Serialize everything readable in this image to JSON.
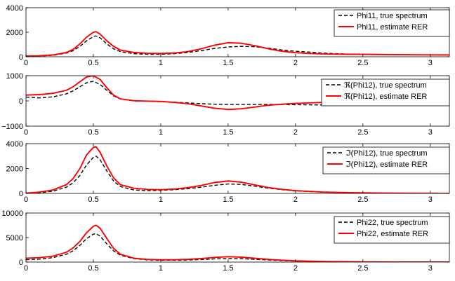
{
  "chart_data": [
    {
      "type": "line",
      "xlim": [
        0,
        3.1416
      ],
      "ylim": [
        0,
        4000
      ],
      "x_ticks": [
        0,
        0.5,
        1,
        1.5,
        2,
        2.5,
        3
      ],
      "y_ticks": [
        0,
        2000,
        4000
      ],
      "y_tick_labels": [
        "0",
        "2000",
        "4000"
      ],
      "legend_position": "top-right",
      "series": [
        {
          "name": "Phi11, true spectrum",
          "color": "#000000",
          "style": "dashed",
          "x": [
            0,
            0.1,
            0.2,
            0.3,
            0.35,
            0.4,
            0.45,
            0.5,
            0.52,
            0.55,
            0.6,
            0.65,
            0.7,
            0.8,
            0.9,
            1.0,
            1.1,
            1.2,
            1.3,
            1.4,
            1.5,
            1.6,
            1.7,
            1.8,
            1.9,
            2.0,
            2.1,
            2.2,
            2.3,
            2.4,
            2.5,
            2.6,
            2.7,
            2.8,
            2.9,
            3.0,
            3.1416
          ],
          "y": [
            40,
            60,
            120,
            300,
            500,
            850,
            1300,
            1650,
            1700,
            1550,
            1050,
            650,
            420,
            250,
            200,
            200,
            250,
            350,
            500,
            680,
            800,
            850,
            820,
            700,
            550,
            450,
            380,
            300,
            250,
            220,
            200,
            190,
            180,
            170,
            160,
            150,
            140
          ]
        },
        {
          "name": "Phi11, estimate RER",
          "color": "#ff0000",
          "style": "solid",
          "x": [
            0,
            0.1,
            0.2,
            0.3,
            0.35,
            0.4,
            0.45,
            0.5,
            0.52,
            0.55,
            0.6,
            0.65,
            0.7,
            0.8,
            0.9,
            1.0,
            1.1,
            1.2,
            1.3,
            1.4,
            1.5,
            1.6,
            1.7,
            1.8,
            1.9,
            2.0,
            2.1,
            2.2,
            2.3,
            2.4,
            2.5,
            2.6,
            2.7,
            2.8,
            2.9,
            3.0,
            3.1416
          ],
          "y": [
            60,
            80,
            150,
            350,
            600,
            1050,
            1600,
            2000,
            2050,
            1850,
            1300,
            850,
            550,
            350,
            280,
            270,
            300,
            420,
            650,
            950,
            1150,
            1100,
            900,
            650,
            450,
            330,
            270,
            230,
            210,
            200,
            195,
            185,
            175,
            165,
            160,
            155,
            150
          ]
        }
      ]
    },
    {
      "type": "line",
      "xlim": [
        0,
        3.1416
      ],
      "ylim": [
        -1000,
        1000
      ],
      "x_ticks": [
        0,
        0.5,
        1,
        1.5,
        2,
        2.5,
        3
      ],
      "y_ticks": [
        -1000,
        0,
        1000
      ],
      "y_tick_labels": [
        "−1000",
        "0",
        "1000"
      ],
      "legend_position": "top-right",
      "series": [
        {
          "name": "ℜ(Phi12), true spectrum",
          "color": "#000000",
          "style": "dashed",
          "x": [
            0,
            0.1,
            0.2,
            0.3,
            0.35,
            0.4,
            0.45,
            0.5,
            0.55,
            0.6,
            0.65,
            0.7,
            0.8,
            0.9,
            1.0,
            1.1,
            1.2,
            1.3,
            1.4,
            1.5,
            1.6,
            1.7,
            1.8,
            1.9,
            2.0,
            2.2,
            2.4,
            2.6,
            2.8,
            3.0,
            3.1416
          ],
          "y": [
            150,
            120,
            160,
            280,
            400,
            560,
            720,
            780,
            650,
            420,
            200,
            80,
            0,
            -10,
            -30,
            -50,
            -80,
            -110,
            -130,
            -140,
            -140,
            -140,
            -140,
            -140,
            -150,
            -160,
            -150,
            -120,
            -80,
            -50,
            -40
          ]
        },
        {
          "name": "ℜ(Phi12), estimate RER",
          "color": "#ff0000",
          "style": "solid",
          "x": [
            0,
            0.1,
            0.2,
            0.3,
            0.35,
            0.4,
            0.45,
            0.5,
            0.55,
            0.6,
            0.65,
            0.7,
            0.8,
            0.9,
            1.0,
            1.1,
            1.2,
            1.3,
            1.4,
            1.5,
            1.6,
            1.7,
            1.8,
            1.9,
            2.0,
            2.2,
            2.4,
            2.6,
            2.8,
            3.0,
            3.1416
          ],
          "y": [
            230,
            250,
            300,
            420,
            560,
            760,
            950,
            1000,
            850,
            520,
            230,
            80,
            10,
            -10,
            -20,
            -60,
            -110,
            -200,
            -290,
            -340,
            -310,
            -240,
            -170,
            -130,
            -100,
            -60,
            -40,
            -20,
            -10,
            -5,
            0
          ]
        }
      ]
    },
    {
      "type": "line",
      "xlim": [
        0,
        3.1416
      ],
      "ylim": [
        0,
        4000
      ],
      "x_ticks": [
        0,
        0.5,
        1,
        1.5,
        2,
        2.5,
        3
      ],
      "y_ticks": [
        0,
        2000,
        4000
      ],
      "y_tick_labels": [
        "0",
        "2000",
        "4000"
      ],
      "legend_position": "top-right",
      "series": [
        {
          "name": "ℑ(Phi12), true spectrum",
          "color": "#000000",
          "style": "dashed",
          "x": [
            0,
            0.1,
            0.2,
            0.3,
            0.35,
            0.4,
            0.45,
            0.5,
            0.52,
            0.55,
            0.6,
            0.65,
            0.7,
            0.8,
            0.9,
            1.0,
            1.1,
            1.2,
            1.3,
            1.4,
            1.5,
            1.6,
            1.7,
            1.8,
            1.9,
            2.0,
            2.2,
            2.4,
            2.6,
            2.8,
            3.0,
            3.1416
          ],
          "y": [
            0,
            50,
            180,
            500,
            850,
            1450,
            2300,
            2900,
            3000,
            2700,
            1800,
            1000,
            550,
            280,
            220,
            250,
            300,
            380,
            500,
            650,
            760,
            720,
            580,
            420,
            300,
            200,
            100,
            50,
            20,
            10,
            5,
            0
          ]
        },
        {
          "name": "ℑ(Phi12), estimate RER",
          "color": "#ff0000",
          "style": "solid",
          "x": [
            0,
            0.1,
            0.2,
            0.3,
            0.35,
            0.4,
            0.45,
            0.5,
            0.52,
            0.55,
            0.6,
            0.65,
            0.7,
            0.8,
            0.9,
            1.0,
            1.1,
            1.2,
            1.3,
            1.4,
            1.5,
            1.6,
            1.7,
            1.8,
            1.9,
            2.0,
            2.2,
            2.4,
            2.6,
            2.8,
            3.0,
            3.1416
          ],
          "y": [
            20,
            100,
            280,
            700,
            1200,
            2000,
            3100,
            3700,
            3750,
            3300,
            2200,
            1250,
            700,
            420,
            320,
            300,
            350,
            460,
            640,
            880,
            1000,
            900,
            680,
            470,
            330,
            220,
            110,
            60,
            30,
            15,
            8,
            5
          ]
        }
      ]
    },
    {
      "type": "line",
      "xlim": [
        0,
        3.1416
      ],
      "ylim": [
        0,
        10000
      ],
      "x_ticks": [
        0,
        0.5,
        1,
        1.5,
        2,
        2.5,
        3
      ],
      "y_ticks": [
        0,
        5000,
        10000
      ],
      "y_tick_labels": [
        "0",
        "5000",
        "10000"
      ],
      "legend_position": "top-right",
      "series": [
        {
          "name": "Phi22, true spectrum",
          "color": "#000000",
          "style": "dashed",
          "x": [
            0,
            0.1,
            0.2,
            0.3,
            0.35,
            0.4,
            0.45,
            0.5,
            0.52,
            0.55,
            0.6,
            0.65,
            0.7,
            0.8,
            0.9,
            1.0,
            1.1,
            1.2,
            1.3,
            1.4,
            1.5,
            1.6,
            1.7,
            1.8,
            1.9,
            2.0,
            2.2,
            2.4,
            2.6,
            2.8,
            3.0,
            3.1416
          ],
          "y": [
            500,
            600,
            900,
            1600,
            2300,
            3400,
            4800,
            5700,
            5800,
            5300,
            3700,
            2300,
            1400,
            700,
            450,
            380,
            380,
            420,
            520,
            650,
            720,
            680,
            560,
            420,
            300,
            200,
            100,
            50,
            30,
            20,
            10,
            10
          ]
        },
        {
          "name": "Phi22, estimate RER",
          "color": "#ff0000",
          "style": "solid",
          "x": [
            0,
            0.1,
            0.2,
            0.3,
            0.35,
            0.4,
            0.45,
            0.5,
            0.52,
            0.55,
            0.6,
            0.65,
            0.7,
            0.8,
            0.9,
            1.0,
            1.1,
            1.2,
            1.3,
            1.4,
            1.5,
            1.6,
            1.7,
            1.8,
            1.9,
            2.0,
            2.2,
            2.4,
            2.6,
            2.8,
            3.0,
            3.1416
          ],
          "y": [
            800,
            900,
            1200,
            2000,
            2900,
            4200,
            6000,
            7300,
            7500,
            6900,
            4800,
            2800,
            1600,
            800,
            550,
            480,
            480,
            560,
            720,
            950,
            1100,
            1000,
            780,
            550,
            380,
            250,
            120,
            60,
            30,
            15,
            10,
            10
          ]
        }
      ]
    }
  ]
}
